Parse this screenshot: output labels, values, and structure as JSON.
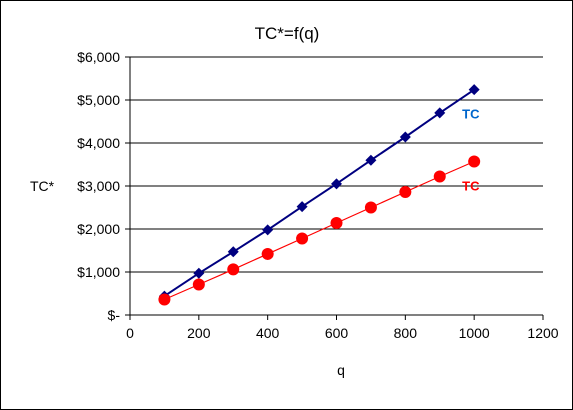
{
  "chart_data": {
    "type": "line",
    "title": "TC*=f(q)",
    "xlabel": "q",
    "ylabel": "TC*",
    "xlim": [
      0,
      1200
    ],
    "ylim": [
      0,
      6000
    ],
    "x_ticks": [
      0,
      200,
      400,
      600,
      800,
      1000,
      1200
    ],
    "x_tick_labels": [
      "0",
      "200",
      "400",
      "600",
      "800",
      "1000",
      "1200"
    ],
    "y_ticks": [
      0,
      1000,
      2000,
      3000,
      4000,
      5000,
      6000
    ],
    "y_tick_labels": [
      "$-",
      "$1,000",
      "$2,000",
      "$3,000",
      "$4,000",
      "$5,000",
      "$6,000"
    ],
    "grid": "horizontal",
    "x": [
      100,
      200,
      300,
      400,
      500,
      600,
      700,
      800,
      900,
      1000
    ],
    "series": [
      {
        "name": "TC",
        "color": "#000080",
        "label_color": "#0066cc",
        "marker": "diamond",
        "values": [
          440,
          970,
          1470,
          1980,
          2520,
          3050,
          3600,
          4140,
          4700,
          5240
        ]
      },
      {
        "name": "TC",
        "color": "#ff0000",
        "label_color": "#ff0000",
        "marker": "circle",
        "values": [
          360,
          710,
          1060,
          1420,
          1780,
          2140,
          2500,
          2860,
          3220,
          3570
        ]
      }
    ]
  }
}
